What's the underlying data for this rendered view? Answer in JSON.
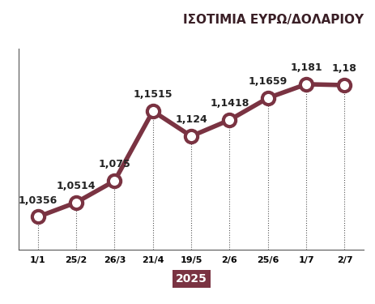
{
  "chart_data": {
    "type": "line",
    "title": "ΙΣΟΤΙΜΙΑ ΕΥΡΩ/ΔΟΛΑΡΙΟΥ",
    "x_label": "2025",
    "categories": [
      "1/1",
      "25/2",
      "26/3",
      "21/4",
      "19/5",
      "2/6",
      "25/6",
      "1/7",
      "2/7"
    ],
    "values": [
      1.0356,
      1.0514,
      1.075,
      1.1515,
      1.124,
      1.1418,
      1.1659,
      1.181,
      1.18
    ],
    "value_labels": [
      "1,0356",
      "1,0514",
      "1,075",
      "1,1515",
      "1,124",
      "1,1418",
      "1,1659",
      "1,181",
      "1,18"
    ],
    "color": "#7a3342",
    "marker": "o",
    "line_style": "solid",
    "ylim": [
      1.0,
      1.22
    ],
    "data_labels": true,
    "tick_labels": "x"
  }
}
